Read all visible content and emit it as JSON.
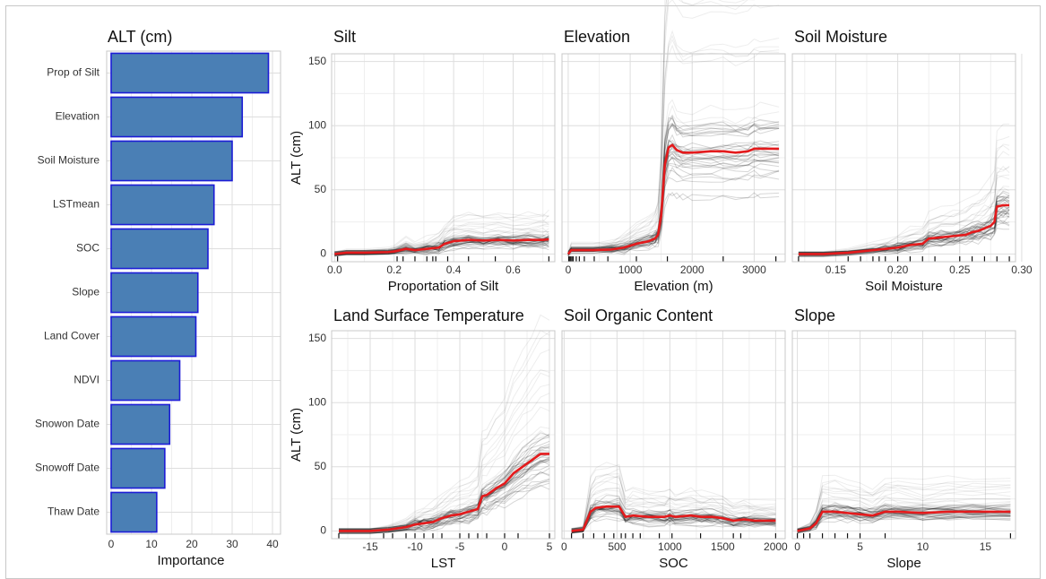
{
  "chart_data": [
    {
      "type": "bar",
      "orientation": "horizontal",
      "title": "ALT (cm)",
      "xlabel": "Importance",
      "xlim": [
        0,
        40
      ],
      "xticks": [
        0,
        10,
        20,
        30,
        40
      ],
      "categories": [
        "Prop of Silt",
        "Elevation",
        "Soil Moisture",
        "LSTmean",
        "SOC",
        "Slope",
        "Land Cover",
        "NDVI",
        "Snowon Date",
        "Snowoff Date",
        "Thaw Date"
      ],
      "values": [
        39,
        32.5,
        30,
        25.5,
        24,
        21.5,
        21,
        17,
        14.5,
        13.3,
        11.3
      ],
      "colors": {
        "fill": "#4a7fb5",
        "stroke": "#1c1cd6"
      }
    },
    {
      "type": "line",
      "title": "Silt",
      "xlabel": "Proportation of Silt",
      "ylabel": "ALT (cm)",
      "xlim": [
        -0.01,
        0.74
      ],
      "ylim": [
        -6,
        156
      ],
      "xticks": [
        "0.0",
        "0.2",
        "0.4",
        "0.6"
      ],
      "yticks": [
        "0",
        "50",
        "100",
        "150"
      ],
      "series": [
        {
          "color": "#e41a1c",
          "x": [
            0.0,
            0.04,
            0.1,
            0.18,
            0.2,
            0.24,
            0.27,
            0.31,
            0.35,
            0.37,
            0.4,
            0.45,
            0.5,
            0.55,
            0.6,
            0.65,
            0.7,
            0.72
          ],
          "y": [
            0,
            1,
            1,
            1.5,
            2,
            4,
            3,
            4,
            5,
            8,
            10,
            11,
            10.5,
            11,
            10.5,
            11,
            11,
            11.5
          ]
        }
      ],
      "rug": [
        0.01,
        0.21,
        0.23,
        0.27,
        0.31,
        0.33,
        0.34,
        0.38,
        0.45,
        0.54,
        0.72
      ]
    },
    {
      "type": "line",
      "title": "Elevation",
      "xlabel": "Elevation (m)",
      "xlim": [
        -100,
        3500
      ],
      "ylim": [
        -6,
        156
      ],
      "xticks": [
        "0",
        "1000",
        "2000",
        "3000"
      ],
      "yticks": [],
      "series": [
        {
          "color": "#e41a1c",
          "x": [
            0,
            50,
            150,
            400,
            700,
            900,
            1100,
            1300,
            1400,
            1450,
            1500,
            1560,
            1620,
            1680,
            1750,
            1850,
            2000,
            2300,
            2500,
            2700,
            2900,
            3000,
            3100,
            3400
          ],
          "y": [
            0,
            3,
            3,
            3,
            3.5,
            5,
            8,
            10,
            12,
            15,
            30,
            70,
            83,
            85,
            81,
            79,
            79,
            80,
            80,
            79,
            80,
            82,
            82,
            82
          ]
        }
      ],
      "rug": [
        10,
        20,
        40,
        60,
        80,
        130,
        180,
        260,
        420,
        640,
        1100,
        1600,
        2500,
        3350
      ]
    },
    {
      "type": "line",
      "title": "Soil Moisture",
      "xlim": [
        0.115,
        0.295
      ],
      "ylim": [
        -6,
        156
      ],
      "xlabel": "Soil Moisture",
      "xticks": [
        "0.15",
        "0.20",
        "0.25",
        "0.30"
      ],
      "yticks": [],
      "series": [
        {
          "color": "#e41a1c",
          "x": [
            0.12,
            0.14,
            0.16,
            0.17,
            0.18,
            0.19,
            0.2,
            0.21,
            0.22,
            0.225,
            0.235,
            0.245,
            0.255,
            0.26,
            0.265,
            0.27,
            0.275,
            0.278,
            0.28,
            0.285,
            0.29
          ],
          "y": [
            0,
            0,
            1,
            2,
            3,
            4,
            5,
            7,
            8,
            12,
            13,
            14,
            15,
            17,
            18,
            20,
            22,
            25,
            37,
            38,
            38
          ]
        }
      ],
      "rug": [
        0.12,
        0.16,
        0.17,
        0.18,
        0.185,
        0.19,
        0.2,
        0.21,
        0.22,
        0.23,
        0.25,
        0.26,
        0.27,
        0.28,
        0.29
      ]
    },
    {
      "type": "line",
      "title": "Land Surface Temperature",
      "xlabel": "LST",
      "ylabel": "ALT (cm)",
      "xlim": [
        -19.3,
        5.6
      ],
      "ylim": [
        -6,
        156
      ],
      "xticks": [
        "-15",
        "-10",
        "-5",
        "0",
        "5"
      ],
      "yticks": [
        "0",
        "50",
        "100",
        "150"
      ],
      "series": [
        {
          "color": "#e41a1c",
          "x": [
            -18.5,
            -15,
            -13,
            -11,
            -10,
            -9,
            -8,
            -7,
            -6,
            -5,
            -4,
            -3,
            -2.5,
            -2,
            -1,
            0,
            1,
            2,
            3,
            4,
            5
          ],
          "y": [
            0,
            0,
            1,
            3,
            5,
            6,
            7,
            10,
            12,
            13,
            15,
            17,
            27,
            28,
            33,
            37,
            45,
            50,
            55,
            60,
            60
          ]
        }
      ],
      "rug": [
        -18.5,
        -13.5,
        -12.5,
        -11,
        -10,
        -9,
        -8,
        -7,
        -5,
        -4,
        -3,
        -2,
        0,
        1.5,
        5
      ]
    },
    {
      "type": "line",
      "title": "Soil Organic Content",
      "xlabel": "SOC",
      "xlim": [
        -20,
        2090
      ],
      "ylim": [
        -6,
        156
      ],
      "xticks": [
        "0",
        "500",
        "1000",
        "1500",
        "2000"
      ],
      "yticks": [],
      "series": [
        {
          "color": "#e41a1c",
          "x": [
            70,
            180,
            250,
            300,
            400,
            520,
            580,
            650,
            800,
            950,
            1000,
            1050,
            1200,
            1300,
            1400,
            1500,
            1600,
            1700,
            1800,
            2000
          ],
          "y": [
            0,
            1,
            15,
            18,
            19,
            19,
            11,
            12,
            11,
            11,
            12,
            11,
            12,
            11,
            11,
            10,
            8,
            9,
            8,
            8
          ]
        }
      ],
      "rug": [
        70,
        180,
        280,
        380,
        470,
        540,
        580,
        650,
        720,
        900,
        1020,
        1290,
        1600,
        1670,
        2000
      ]
    },
    {
      "type": "line",
      "title": "Slope",
      "xlabel": "Slope",
      "xlim": [
        -0.4,
        17.4
      ],
      "ylim": [
        -6,
        156
      ],
      "xticks": [
        "0",
        "5",
        "10",
        "15"
      ],
      "yticks": [],
      "series": [
        {
          "color": "#e41a1c",
          "x": [
            0,
            1,
            1.5,
            2,
            3,
            4,
            5,
            6,
            7,
            8,
            10,
            12,
            14,
            17
          ],
          "y": [
            0,
            2,
            6,
            15,
            15,
            14,
            13,
            12,
            15,
            15,
            14,
            15,
            15,
            15
          ]
        }
      ],
      "rug": [
        0,
        0.5,
        1,
        2,
        3,
        4,
        5,
        7,
        17
      ]
    }
  ]
}
